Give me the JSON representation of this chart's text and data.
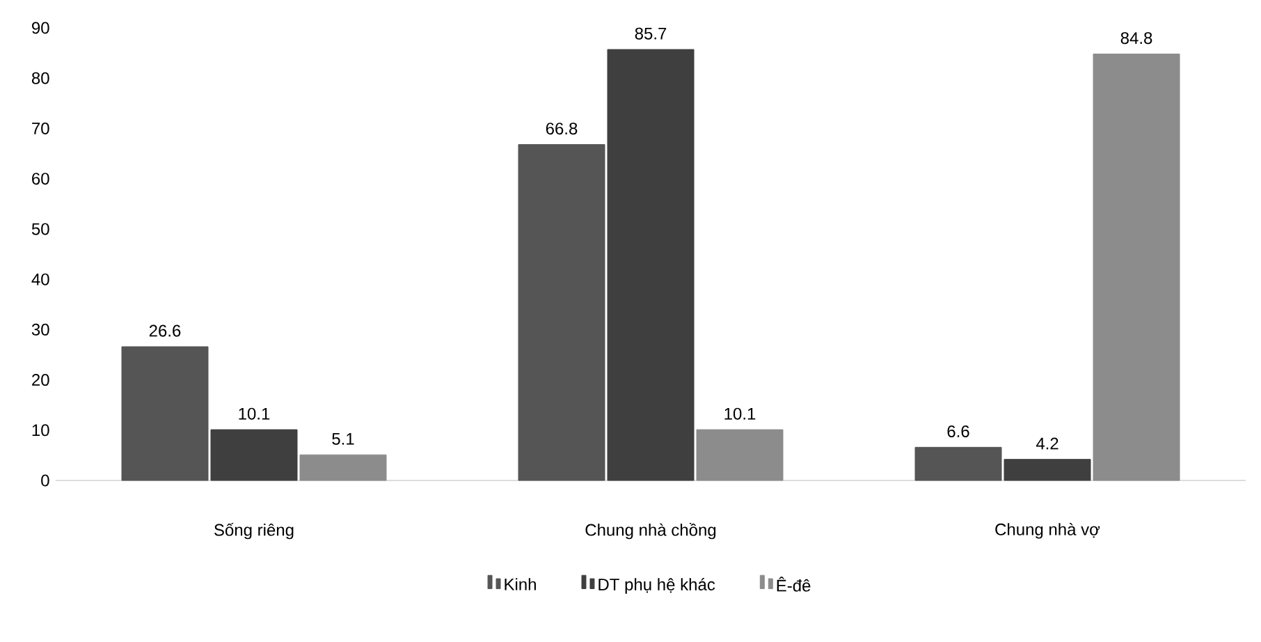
{
  "chart_data": {
    "type": "bar",
    "categories": [
      "Sống riêng",
      "Chung nhà chồng",
      "Chung nhà vợ"
    ],
    "series": [
      {
        "name": "Kinh",
        "color": "#555555",
        "values": [
          26.6,
          66.8,
          6.6
        ]
      },
      {
        "name": "DT phụ hệ khác",
        "color": "#3f3f3f",
        "values": [
          10.1,
          85.7,
          4.2
        ]
      },
      {
        "name": "Ê-đê",
        "color": "#8c8c8c",
        "values": [
          5.1,
          10.1,
          84.8
        ]
      }
    ],
    "ylim": [
      0,
      90
    ],
    "yticks": [
      0,
      10,
      20,
      30,
      40,
      50,
      60,
      70,
      80,
      90
    ],
    "legend": "bottom",
    "data_labels": true
  }
}
